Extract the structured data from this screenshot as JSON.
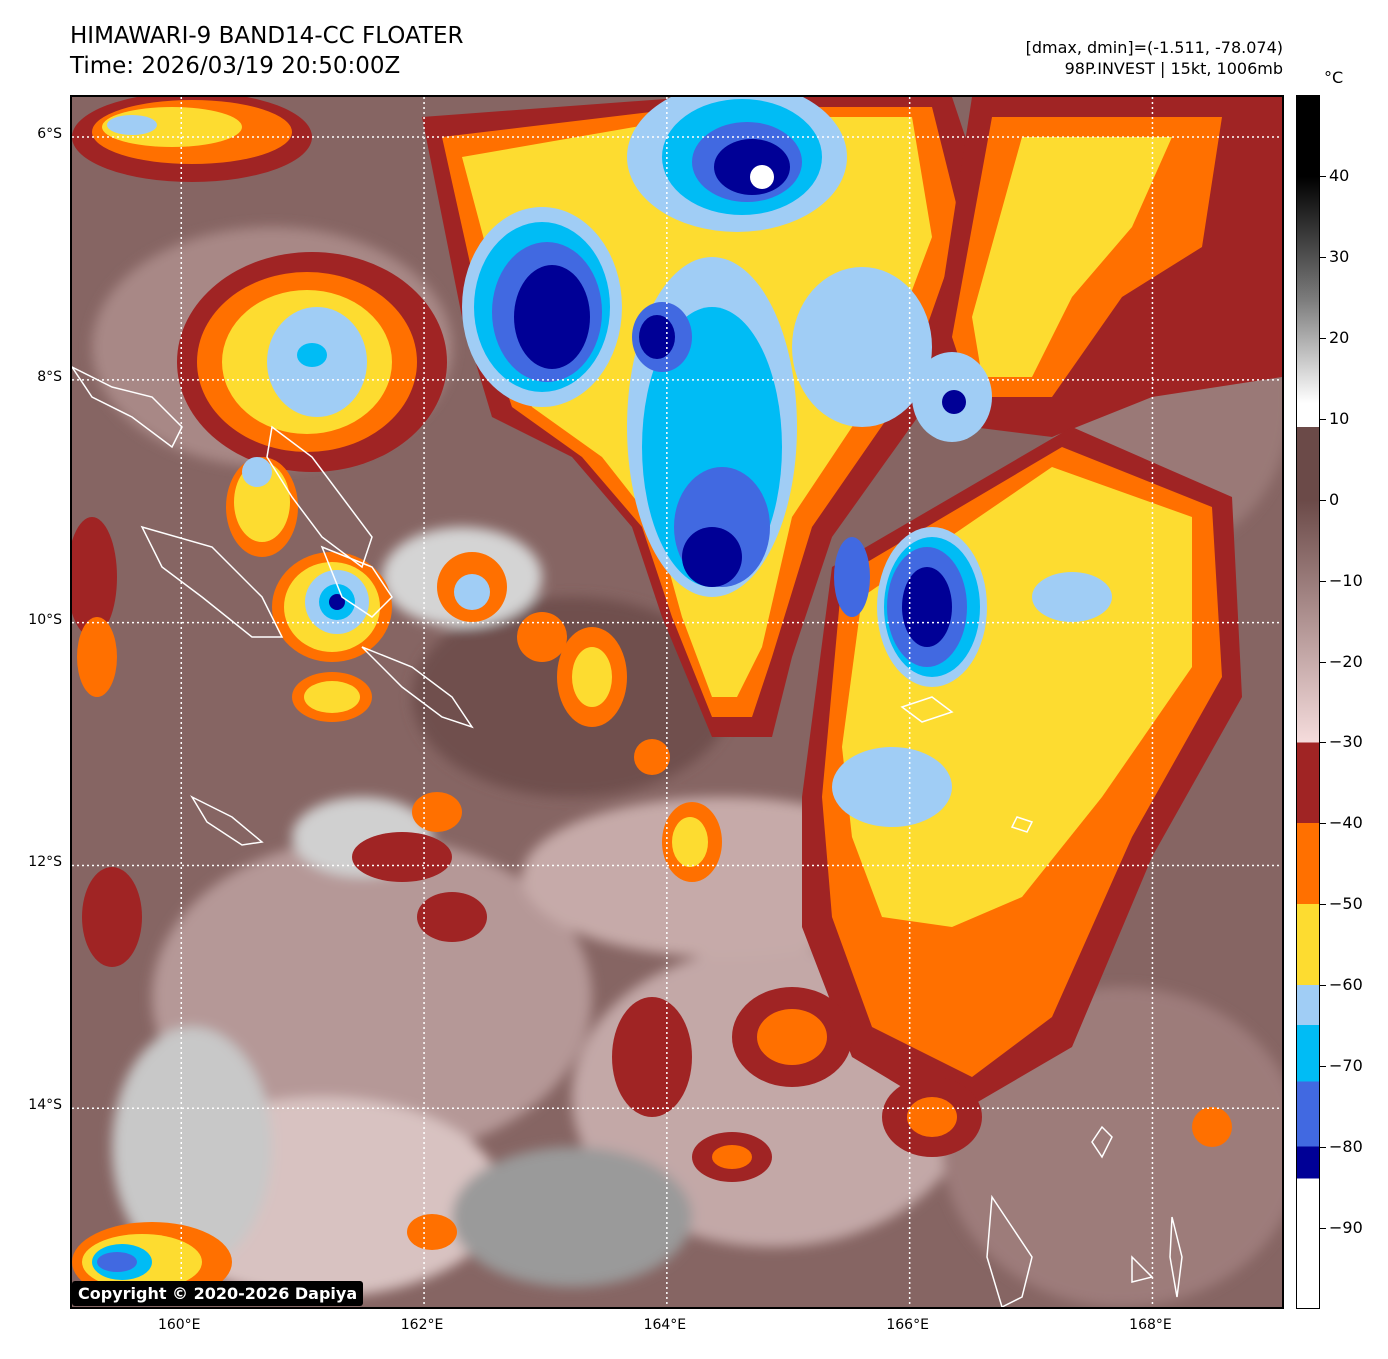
{
  "title": {
    "line1": "HIMAWARI-9 BAND14-CC FLOATER",
    "line2": "Time: 2026/03/19 20:50:00Z"
  },
  "info": {
    "line1": "[dmax, dmin]=(-1.511, -78.074)",
    "line2": "98P.INVEST | 15kt, 1006mb"
  },
  "map": {
    "lat_labels": [
      "6°S",
      "8°S",
      "10°S",
      "12°S",
      "14°S"
    ],
    "lon_labels": [
      "160°E",
      "162°E",
      "164°E",
      "166°E",
      "168°E"
    ],
    "lat_values": [
      -6,
      -8,
      -10,
      -12,
      -14
    ],
    "lon_values": [
      160,
      162,
      164,
      166,
      168
    ],
    "extent": {
      "lon_min": 159.1,
      "lon_max": 169.1,
      "lat_max": -5.67,
      "lat_min": -15.67
    },
    "grid": true,
    "copyright": "Copyright © 2020-2026 Dapiya"
  },
  "colorbar": {
    "unit": "°C",
    "labels": [
      "40",
      "30",
      "20",
      "10",
      "0",
      "−10",
      "−20",
      "−30",
      "−40",
      "−50",
      "−60",
      "−70",
      "−80",
      "−90"
    ],
    "values": [
      40,
      30,
      20,
      10,
      0,
      -10,
      -20,
      -30,
      -40,
      -50,
      -60,
      -70,
      -80,
      -90
    ],
    "range": [
      -100,
      50
    ],
    "colors": {
      "warm_black": "#000000",
      "gray_white": "#ffffff",
      "brown_dark": "#6b4a48",
      "pink_light": "#f5dcdc",
      "dark_red": "#a02424",
      "orange": "#ff7000",
      "yellow": "#fddc30",
      "light_blue": "#a0cdf5",
      "cyan": "#00bcf5",
      "royal_blue": "#4169e1",
      "navy": "#000096",
      "cold_white": "#ffffff"
    }
  }
}
